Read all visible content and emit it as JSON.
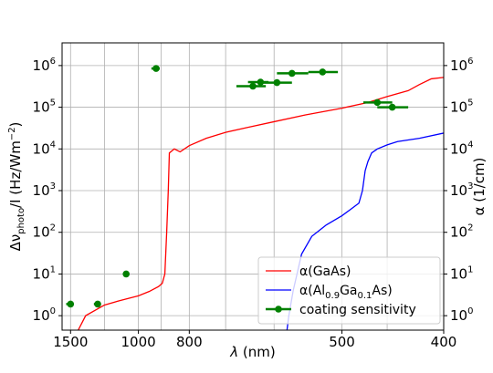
{
  "chart_data": {
    "type": "line",
    "xlabel_symbol": "λ",
    "xlabel_unit": " (nm)",
    "ylabel_left": {
      "delta": "Δν",
      "sub": "photo",
      "middle": "/I (Hz/Wm",
      "sup": "−2",
      "end": ")"
    },
    "ylabel_right": "α  (1/cm)",
    "x_axis": {
      "quantity": "wavelength (nm)",
      "scale": "reciprocal",
      "range": [
        1600,
        400
      ],
      "ticks": [
        {
          "value": 1500,
          "label": "1500"
        },
        {
          "value": 1000,
          "label": "1000"
        },
        {
          "value": 800,
          "label": "800"
        },
        {
          "value": 500,
          "label": "500"
        },
        {
          "value": 400,
          "label": "400"
        }
      ],
      "gridlines": [
        1500,
        1200,
        1000,
        900,
        800,
        700,
        600,
        500,
        450,
        400
      ]
    },
    "y_axis": {
      "scale": "log",
      "range": [
        0.45,
        3500000
      ],
      "ticks": [
        {
          "value": 1,
          "base": "10",
          "exp": "0"
        },
        {
          "value": 10,
          "base": "10",
          "exp": "1"
        },
        {
          "value": 100,
          "base": "10",
          "exp": "2"
        },
        {
          "value": 1000,
          "base": "10",
          "exp": "3"
        },
        {
          "value": 10000,
          "base": "10",
          "exp": "4"
        },
        {
          "value": 100000,
          "base": "10",
          "exp": "5"
        },
        {
          "value": 1000000,
          "base": "10",
          "exp": "6"
        }
      ]
    },
    "grid": true,
    "legend_position": "bottom-right",
    "series": [
      {
        "name": "α(GaAs)",
        "legend_parts": [
          {
            "t": "α(GaAs)"
          }
        ],
        "color": "#ff0000",
        "style": "line",
        "points": [
          [
            1420,
            0.45
          ],
          [
            1350,
            1.0
          ],
          [
            1200,
            1.8
          ],
          [
            1100,
            2.3
          ],
          [
            1000,
            3.0
          ],
          [
            950,
            3.8
          ],
          [
            910,
            5.0
          ],
          [
            895,
            6.0
          ],
          [
            885,
            10
          ],
          [
            878,
            100
          ],
          [
            872,
            1000
          ],
          [
            868,
            8000
          ],
          [
            850,
            10000
          ],
          [
            830,
            8500
          ],
          [
            800,
            12000
          ],
          [
            750,
            18000
          ],
          [
            700,
            25000
          ],
          [
            650,
            33000
          ],
          [
            600,
            45000
          ],
          [
            550,
            65000
          ],
          [
            500,
            95000
          ],
          [
            470,
            130000
          ],
          [
            450,
            180000
          ],
          [
            430,
            250000
          ],
          [
            420,
            350000
          ],
          [
            410,
            480000
          ],
          [
            400,
            520000
          ],
          [
            390,
            560000
          ]
        ]
      },
      {
        "name": "α(Al0.9Ga0.1As)",
        "legend_parts": [
          {
            "t": "α(Al"
          },
          {
            "t": "0.9",
            "sub": true
          },
          {
            "t": "Ga"
          },
          {
            "t": "0.1",
            "sub": true
          },
          {
            "t": "As)"
          }
        ],
        "color": "#0000ff",
        "style": "line",
        "points": [
          [
            578,
            0.45
          ],
          [
            575,
            1.0
          ],
          [
            568,
            4.0
          ],
          [
            555,
            30
          ],
          [
            540,
            80
          ],
          [
            520,
            150
          ],
          [
            500,
            250
          ],
          [
            490,
            350
          ],
          [
            480,
            500
          ],
          [
            476,
            1000
          ],
          [
            473,
            3000
          ],
          [
            470,
            5000
          ],
          [
            466,
            8000
          ],
          [
            460,
            10000
          ],
          [
            450,
            12500
          ],
          [
            440,
            15000
          ],
          [
            420,
            18000
          ],
          [
            400,
            24000
          ]
        ]
      },
      {
        "name": "coating sensitivity",
        "legend_parts": [
          {
            "t": "coating sensitivity"
          }
        ],
        "color": "#008000",
        "style": "errorbar",
        "points": [
          {
            "x": 1500,
            "y": 1.9,
            "xerr": [
              1550,
              1470
            ]
          },
          {
            "x": 1250,
            "y": 1.9,
            "xerr": [
              1280,
              1230
            ]
          },
          {
            "x": 1064,
            "y": 10,
            "xerr": [
              1080,
              1050
            ]
          },
          {
            "x": 920,
            "y": 850000,
            "xerr": [
              940,
              905
            ]
          },
          {
            "x": 640,
            "y": 320000,
            "xerr": [
              675,
              615
            ]
          },
          {
            "x": 625,
            "y": 400000,
            "xerr": [
              650,
              610
            ]
          },
          {
            "x": 595,
            "y": 390000,
            "xerr": [
              625,
              570
            ]
          },
          {
            "x": 570,
            "y": 650000,
            "xerr": [
              595,
              545
            ]
          },
          {
            "x": 525,
            "y": 700000,
            "xerr": [
              545,
              505
            ]
          },
          {
            "x": 460,
            "y": 130000,
            "xerr": [
              475,
              445
            ]
          },
          {
            "x": 445,
            "y": 100000,
            "xerr": [
              460,
              430
            ]
          }
        ]
      }
    ]
  }
}
